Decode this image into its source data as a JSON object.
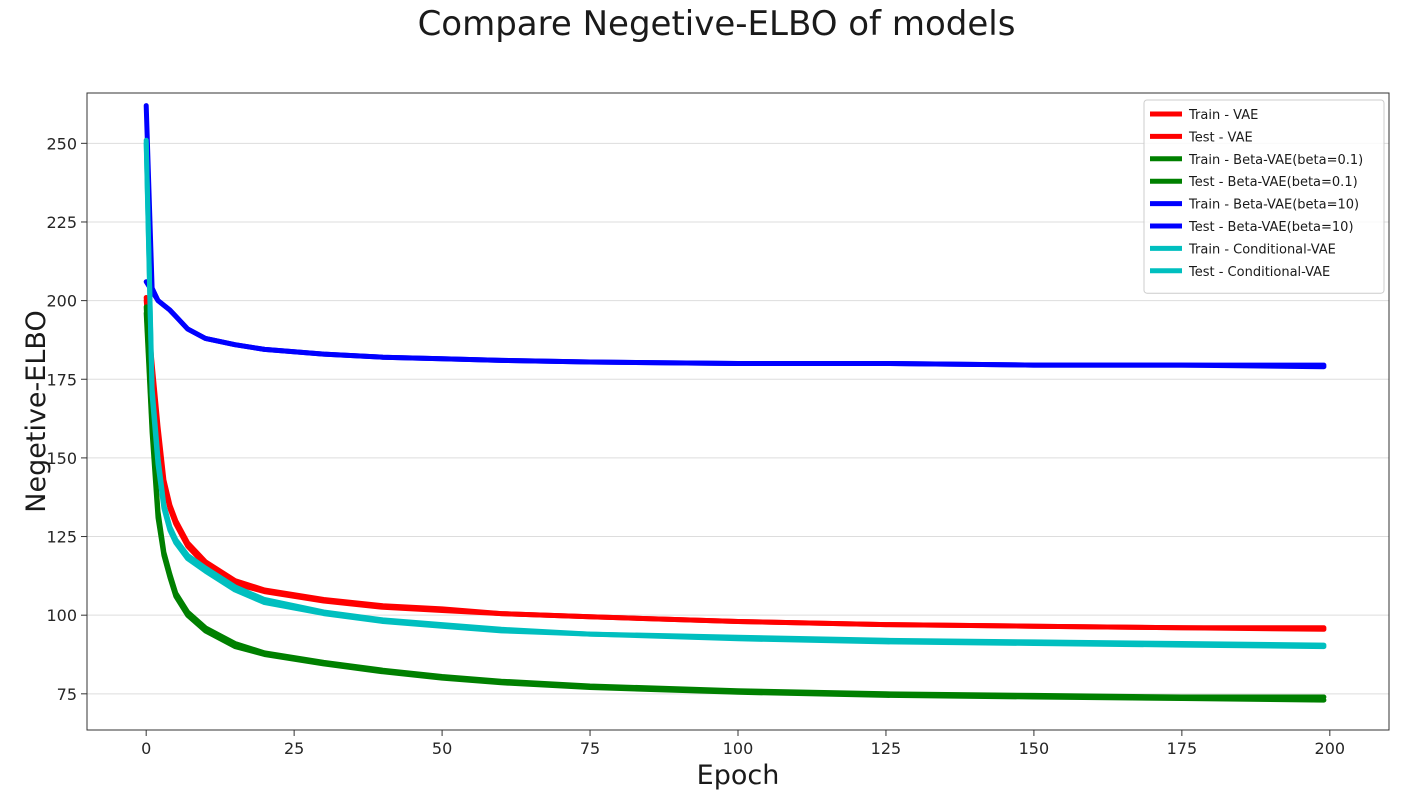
{
  "chart_data": {
    "type": "line",
    "title": "Compare Negetive-ELBO of models",
    "xlabel": "Epoch",
    "ylabel": "Negetive-ELBO",
    "xlim": [
      -10,
      210
    ],
    "ylim": [
      63.5,
      266
    ],
    "xticks": [
      0,
      25,
      50,
      75,
      100,
      125,
      150,
      175,
      200
    ],
    "yticks": [
      75,
      100,
      125,
      150,
      175,
      200,
      225,
      250
    ],
    "grid": "horizontal",
    "legend_position": "top-right",
    "x": [
      0,
      1,
      2,
      3,
      4,
      5,
      7,
      10,
      15,
      20,
      30,
      40,
      50,
      60,
      75,
      100,
      125,
      150,
      175,
      199
    ],
    "series": [
      {
        "name": "Train - VAE",
        "color": "#ff0000",
        "values": [
          201,
          180,
          160,
          143,
          135,
          130,
          123,
          117,
          111,
          108,
          105,
          103,
          102,
          100.5,
          99.5,
          98,
          97,
          96.5,
          96,
          96
        ]
      },
      {
        "name": "Test - VAE",
        "color": "#ff0000",
        "values": [
          200,
          178,
          158,
          142,
          134,
          129,
          122,
          116,
          110,
          107.5,
          104.5,
          102.5,
          101.5,
          100.5,
          99.5,
          98,
          97,
          96.5,
          96,
          95.5
        ]
      },
      {
        "name": "Train - Beta-VAE(beta=0.1)",
        "color": "#008000",
        "values": [
          198,
          160,
          133,
          120,
          113,
          107,
          101,
          96,
          91,
          88,
          85,
          82.5,
          80.5,
          79,
          77.5,
          76,
          75,
          74.5,
          74,
          74
        ]
      },
      {
        "name": "Test - Beta-VAE(beta=0.1)",
        "color": "#008000",
        "values": [
          196,
          158,
          131,
          119,
          112,
          106,
          100,
          95,
          90,
          87.5,
          84.5,
          82,
          80,
          78.5,
          77,
          75.5,
          74.5,
          74,
          73.5,
          73
        ]
      },
      {
        "name": "Train - Beta-VAE(beta=10)",
        "color": "#0000ff",
        "values": [
          262,
          204,
          200,
          198.5,
          197,
          195,
          191,
          188,
          186,
          184.5,
          183,
          182,
          181.5,
          181,
          180.5,
          180,
          180,
          179.5,
          179.5,
          179.5
        ]
      },
      {
        "name": "Test - Beta-VAE(beta=10)",
        "color": "#0000ff",
        "values": [
          206,
          203,
          200,
          198.5,
          197,
          195,
          191,
          188,
          186,
          184.5,
          183,
          182,
          181.5,
          181,
          180.5,
          180,
          180,
          179.5,
          179.5,
          179
        ]
      },
      {
        "name": "Train - Conditional-VAE",
        "color": "#00bfbf",
        "values": [
          251,
          172,
          150,
          135,
          128,
          124,
          119,
          115,
          109,
          105,
          101,
          98.5,
          97,
          95.5,
          94,
          93,
          92,
          91.5,
          91,
          90.5
        ]
      },
      {
        "name": "Test - Conditional-VAE",
        "color": "#00bfbf",
        "values": [
          250,
          170,
          148,
          134,
          127,
          123,
          118,
          114,
          108,
          104,
          100.5,
          98,
          96.5,
          95,
          94,
          92.5,
          91.5,
          91,
          90.5,
          90
        ]
      }
    ]
  }
}
